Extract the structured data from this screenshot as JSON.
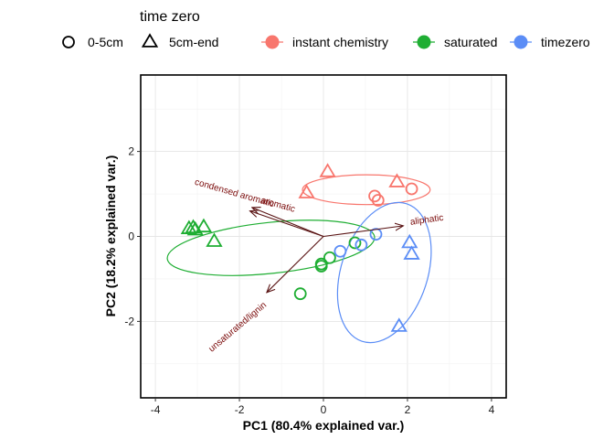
{
  "chart_data": {
    "type": "scatter",
    "title": "",
    "xlabel": "PC1 (80.4% explained var.)",
    "ylabel": "PC2 (18.2% explained var.)",
    "xlim": [
      -4.35,
      4.35
    ],
    "ylim": [
      -3.8,
      3.8
    ],
    "x_ticks": [
      -4,
      -2,
      0,
      2,
      4
    ],
    "y_ticks": [
      -2,
      0,
      2
    ],
    "grid": true,
    "legend_title": "time zero",
    "shape_legend": [
      {
        "label": "0-5cm",
        "shape": "circle"
      },
      {
        "label": "5cm-end",
        "shape": "triangle"
      }
    ],
    "color_legend": [
      {
        "label": "instant chemistry",
        "color": "#F8766D"
      },
      {
        "label": "saturated",
        "color": "#1FAE33"
      },
      {
        "label": "timezero",
        "color": "#5B8DF6"
      }
    ],
    "series": [
      {
        "name": "instant chemistry",
        "color": "#F8766D",
        "points": [
          {
            "x": 0.1,
            "y": 1.52,
            "shape": "triangle"
          },
          {
            "x": -0.4,
            "y": 1.02,
            "shape": "triangle"
          },
          {
            "x": 1.75,
            "y": 1.28,
            "shape": "triangle"
          },
          {
            "x": 1.22,
            "y": 0.95,
            "shape": "circle"
          },
          {
            "x": 1.3,
            "y": 0.85,
            "shape": "circle"
          },
          {
            "x": 2.1,
            "y": 1.12,
            "shape": "circle"
          }
        ],
        "ellipse": {
          "cx": 1.02,
          "cy": 1.1,
          "rx": 1.52,
          "ry": 0.35,
          "angle": 0
        }
      },
      {
        "name": "saturated",
        "color": "#1FAE33",
        "points": [
          {
            "x": -3.2,
            "y": 0.18,
            "shape": "triangle"
          },
          {
            "x": -3.1,
            "y": 0.2,
            "shape": "triangle"
          },
          {
            "x": -3.05,
            "y": 0.15,
            "shape": "triangle"
          },
          {
            "x": -2.85,
            "y": 0.22,
            "shape": "triangle"
          },
          {
            "x": -2.6,
            "y": -0.12,
            "shape": "triangle"
          },
          {
            "x": -0.55,
            "y": -1.35,
            "shape": "circle"
          },
          {
            "x": -0.05,
            "y": -0.65,
            "shape": "circle"
          },
          {
            "x": -0.05,
            "y": -0.7,
            "shape": "circle"
          },
          {
            "x": 0.15,
            "y": -0.5,
            "shape": "circle"
          },
          {
            "x": 0.75,
            "y": -0.15,
            "shape": "circle"
          }
        ],
        "ellipse": {
          "cx": -1.25,
          "cy": -0.27,
          "rx": 2.48,
          "ry": 0.6,
          "angle": -6
        }
      },
      {
        "name": "timezero",
        "color": "#5B8DF6",
        "points": [
          {
            "x": 2.05,
            "y": -0.15,
            "shape": "triangle"
          },
          {
            "x": 2.1,
            "y": -0.42,
            "shape": "triangle"
          },
          {
            "x": 1.8,
            "y": -2.12,
            "shape": "triangle"
          },
          {
            "x": 1.25,
            "y": 0.05,
            "shape": "circle"
          },
          {
            "x": 0.9,
            "y": -0.2,
            "shape": "circle"
          },
          {
            "x": 0.4,
            "y": -0.35,
            "shape": "circle"
          }
        ],
        "ellipse": {
          "cx": 1.45,
          "cy": -0.85,
          "rx": 1.72,
          "ry": 1.02,
          "angle": -72
        }
      }
    ],
    "loadings": [
      {
        "label": "aliphatic",
        "x": 1.9,
        "y": 0.25
      },
      {
        "label": "aromatic",
        "x": -1.75,
        "y": 0.6
      },
      {
        "label": "condensed aromatic",
        "x": -1.7,
        "y": 0.68
      },
      {
        "label": "unsaturated/lignin",
        "x": -1.35,
        "y": -1.32
      }
    ],
    "loading_origin": [
      0,
      0
    ],
    "loading_color": "#5a1414"
  }
}
